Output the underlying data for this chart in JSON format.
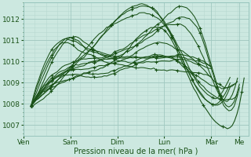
{
  "xlabel": "Pression niveau de la mer( hPa )",
  "bg_color": "#cce8e0",
  "grid_major_color": "#b8d8d0",
  "grid_minor_color": "#c8e4dc",
  "line_color": "#1a5218",
  "ylim": [
    1006.5,
    1012.8
  ],
  "yticks": [
    1007,
    1008,
    1009,
    1010,
    1011,
    1012
  ],
  "day_labels": [
    "Ven",
    "Sam",
    "Dim",
    "Lun",
    "Mar",
    "Me"
  ],
  "day_positions": [
    0.0,
    0.208,
    0.417,
    0.625,
    0.833,
    0.958
  ],
  "xlim": [
    0.0,
    1.0
  ]
}
